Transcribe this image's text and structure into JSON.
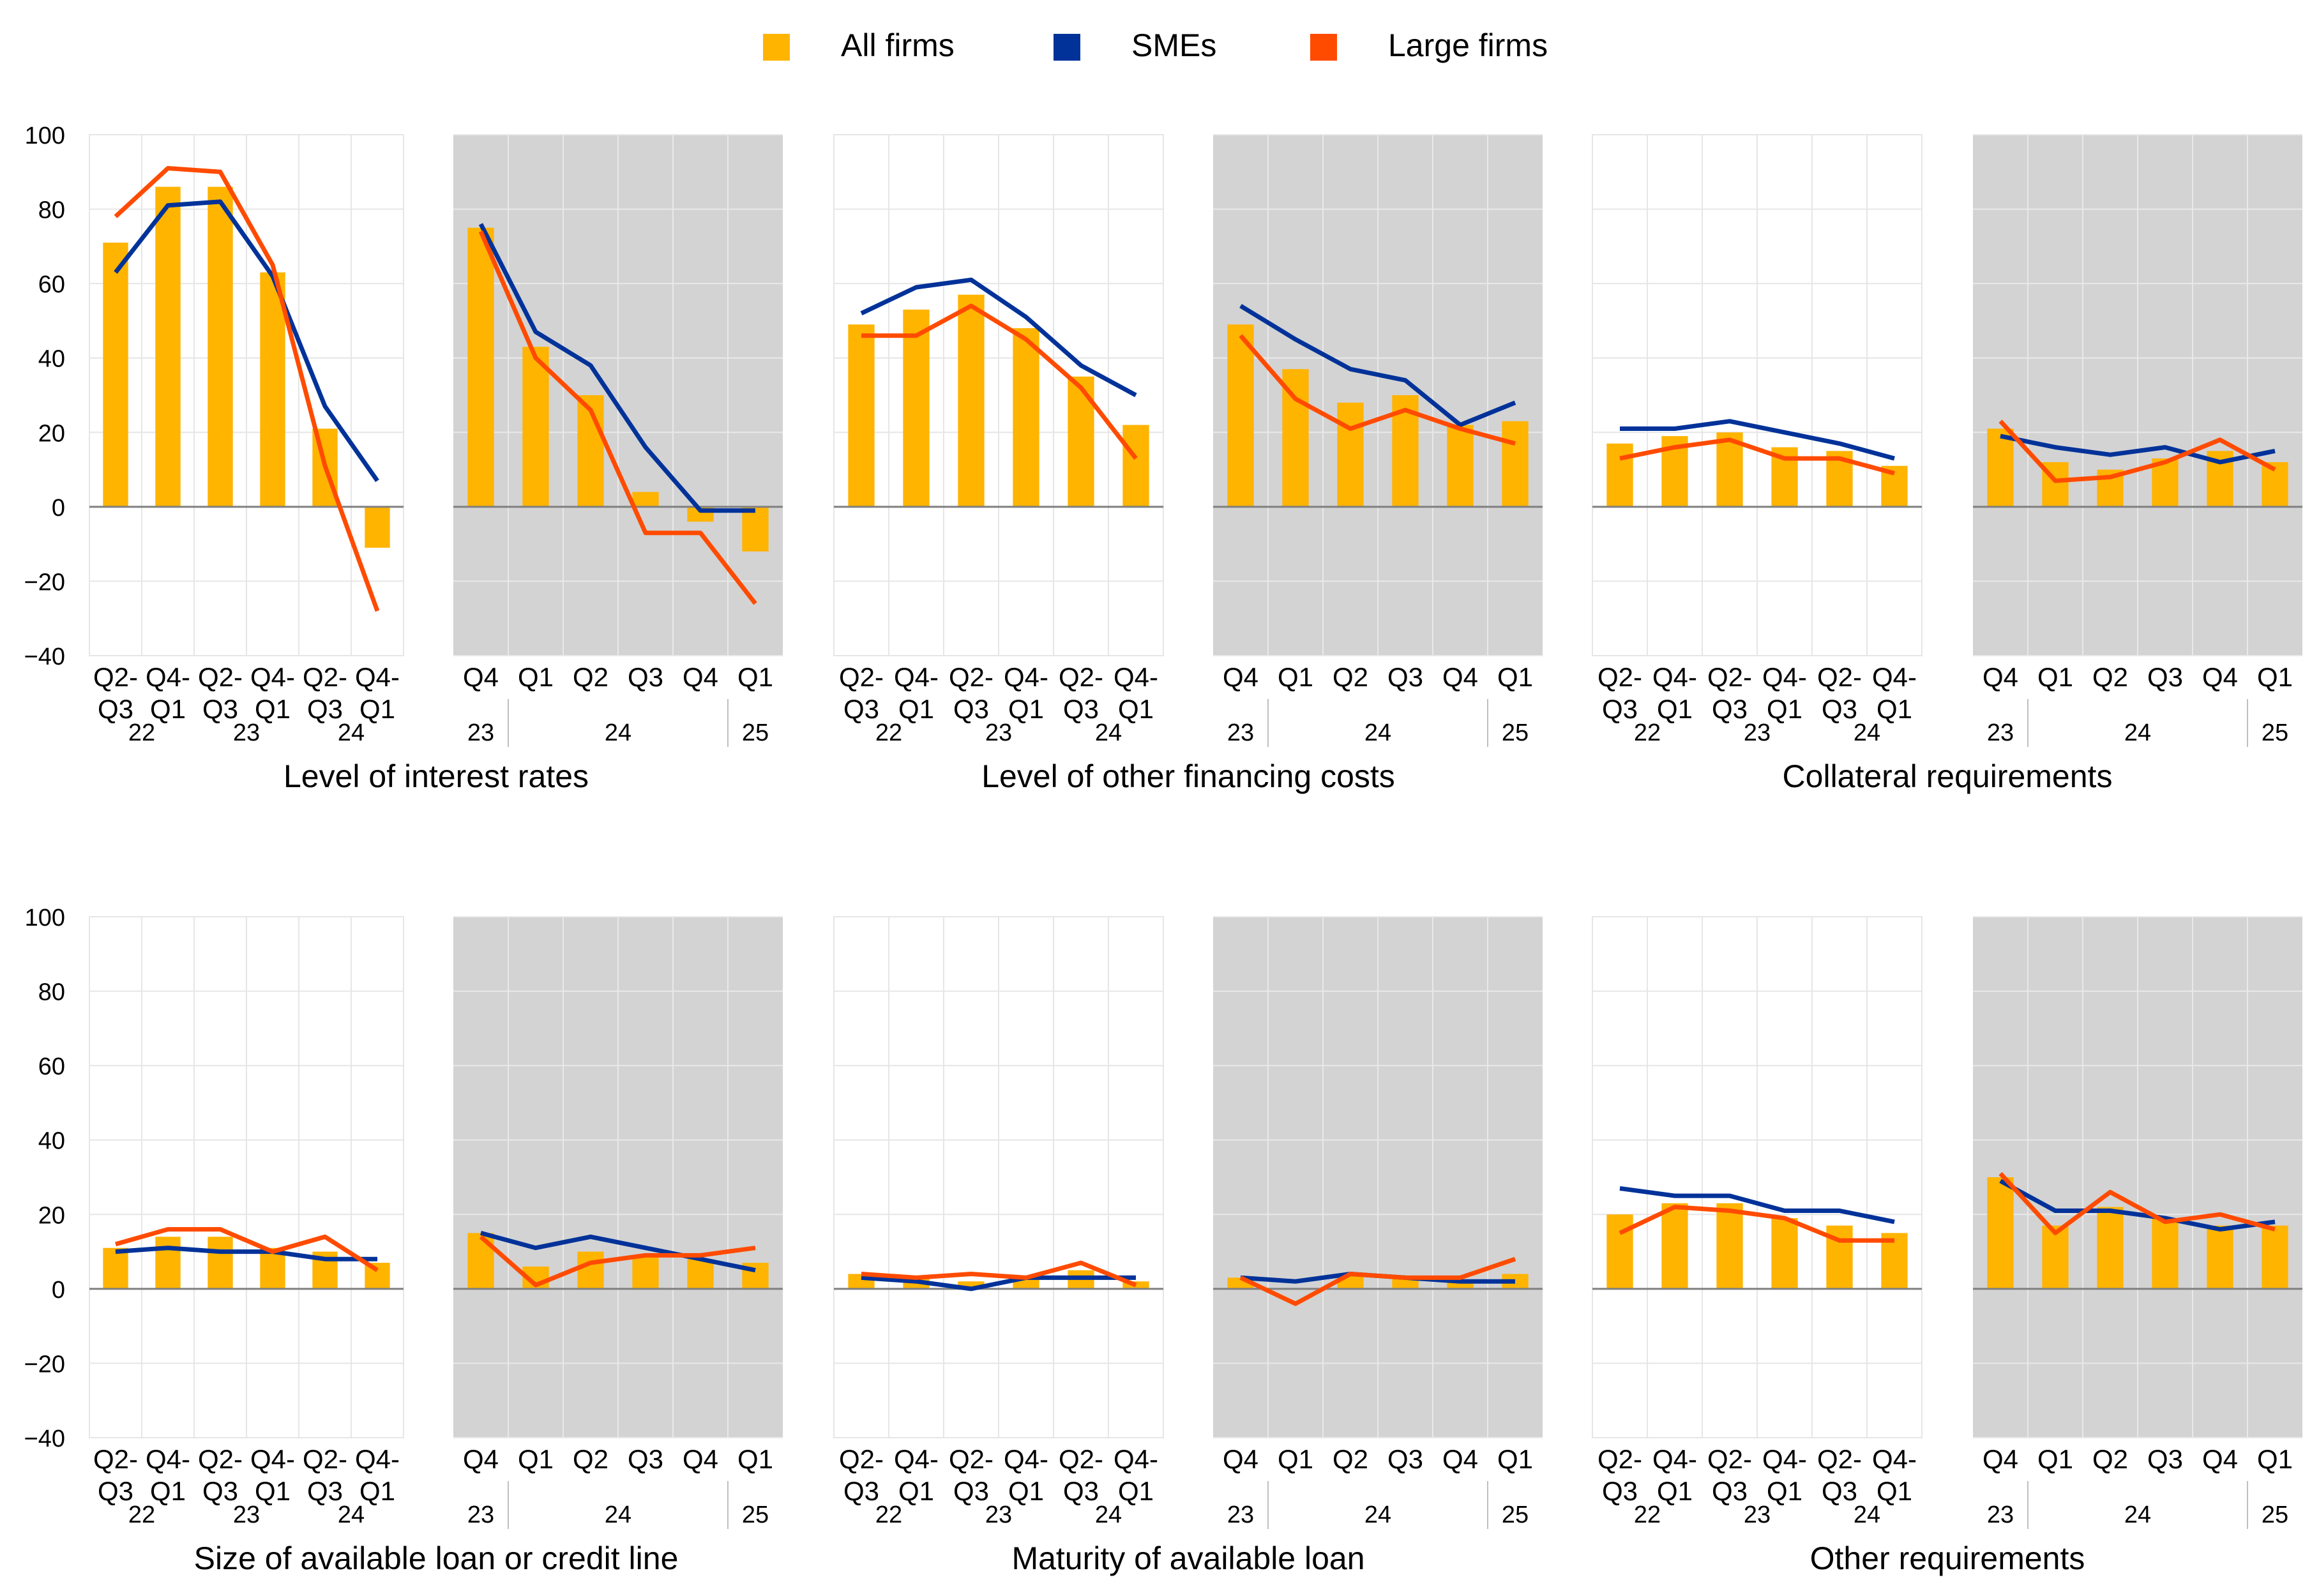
{
  "legend": {
    "items": [
      {
        "label": "All firms",
        "color": "#FFB400",
        "marker": "square"
      },
      {
        "label": "SMEs",
        "color": "#003299",
        "marker": "square"
      },
      {
        "label": "Large firms",
        "color": "#FF4B00",
        "marker": "square"
      }
    ],
    "placement": "top-center"
  },
  "axes": {
    "ylim": [
      -40,
      100
    ],
    "yticks": [
      "100",
      "80",
      "60",
      "40",
      "20",
      "0",
      "−20",
      "−40"
    ],
    "grid": true,
    "zero_line": true
  },
  "colors": {
    "all_firms": "#FFB400",
    "smes": "#003299",
    "large_firms": "#FF4B00",
    "shaded_background": "#D3D3D3",
    "grid": "#E6E6E6",
    "axis": "#7F7F7F"
  },
  "half_year_axis": {
    "tick_labels": [
      [
        "Q2-",
        "Q3"
      ],
      [
        "Q4-",
        "Q1"
      ],
      [
        "Q2-",
        "Q3"
      ],
      [
        "Q4-",
        "Q1"
      ],
      [
        "Q2-",
        "Q3"
      ],
      [
        "Q4-",
        "Q1"
      ]
    ],
    "year_labels": [
      "22",
      "23",
      "24"
    ]
  },
  "quarter_axis": {
    "tick_labels": [
      "Q4",
      "Q1",
      "Q2",
      "Q3",
      "Q4",
      "Q1"
    ],
    "year_labels": [
      "23",
      "24",
      "25"
    ]
  },
  "chart_data": [
    {
      "type": "bar+line",
      "title": "Level of interest rates",
      "periods": {
        "half_year": [
          "Q2-Q3 2022",
          "Q4 2022-Q1 2023",
          "Q2-Q3 2023",
          "Q4 2023-Q1 2024",
          "Q2-Q3 2024",
          "Q4 2024-Q1 2025"
        ],
        "quarterly": [
          "Q4 2023",
          "Q1 2024",
          "Q2 2024",
          "Q3 2024",
          "Q4 2024",
          "Q1 2025"
        ]
      },
      "series": [
        {
          "name": "All firms",
          "kind": "bar",
          "half_year": [
            71,
            86,
            86,
            63,
            21,
            -11
          ],
          "quarterly": [
            75,
            43,
            30,
            4,
            -4,
            -12
          ]
        },
        {
          "name": "SMEs",
          "kind": "line",
          "half_year": [
            63,
            81,
            82,
            62,
            27,
            7
          ],
          "quarterly": [
            76,
            47,
            38,
            16,
            -1,
            -1
          ]
        },
        {
          "name": "Large firms",
          "kind": "line",
          "half_year": [
            78,
            91,
            90,
            65,
            11,
            -28
          ],
          "quarterly": [
            74,
            40,
            26,
            -7,
            -7,
            -26
          ]
        }
      ],
      "ylim": [
        -40,
        100
      ]
    },
    {
      "type": "bar+line",
      "title": "Level of other financing costs",
      "periods": {
        "half_year": [
          "Q2-Q3 2022",
          "Q4 2022-Q1 2023",
          "Q2-Q3 2023",
          "Q4 2023-Q1 2024",
          "Q2-Q3 2024",
          "Q4 2024-Q1 2025"
        ],
        "quarterly": [
          "Q4 2023",
          "Q1 2024",
          "Q2 2024",
          "Q3 2024",
          "Q4 2024",
          "Q1 2025"
        ]
      },
      "series": [
        {
          "name": "All firms",
          "kind": "bar",
          "half_year": [
            49,
            53,
            57,
            48,
            35,
            22
          ],
          "quarterly": [
            49,
            37,
            28,
            30,
            22,
            23
          ]
        },
        {
          "name": "SMEs",
          "kind": "line",
          "half_year": [
            52,
            59,
            61,
            51,
            38,
            30
          ],
          "quarterly": [
            54,
            45,
            37,
            34,
            22,
            28
          ]
        },
        {
          "name": "Large firms",
          "kind": "line",
          "half_year": [
            46,
            46,
            54,
            45,
            32,
            13
          ],
          "quarterly": [
            46,
            29,
            21,
            26,
            21,
            17
          ]
        }
      ],
      "ylim": [
        -40,
        100
      ]
    },
    {
      "type": "bar+line",
      "title": "Collateral requirements",
      "periods": {
        "half_year": [
          "Q2-Q3 2022",
          "Q4 2022-Q1 2023",
          "Q2-Q3 2023",
          "Q4 2023-Q1 2024",
          "Q2-Q3 2024",
          "Q4 2024-Q1 2025"
        ],
        "quarterly": [
          "Q4 2023",
          "Q1 2024",
          "Q2 2024",
          "Q3 2024",
          "Q4 2024",
          "Q1 2025"
        ]
      },
      "series": [
        {
          "name": "All firms",
          "kind": "bar",
          "half_year": [
            17,
            19,
            20,
            16,
            15,
            11
          ],
          "quarterly": [
            21,
            12,
            10,
            13,
            15,
            12
          ]
        },
        {
          "name": "SMEs",
          "kind": "line",
          "half_year": [
            21,
            21,
            23,
            20,
            17,
            13
          ],
          "quarterly": [
            19,
            16,
            14,
            16,
            12,
            15
          ]
        },
        {
          "name": "Large firms",
          "kind": "line",
          "half_year": [
            13,
            16,
            18,
            13,
            13,
            9
          ],
          "quarterly": [
            23,
            7,
            8,
            12,
            18,
            10
          ]
        }
      ],
      "ylim": [
        -40,
        100
      ]
    },
    {
      "type": "bar+line",
      "title": "Size of available loan or credit line",
      "periods": {
        "half_year": [
          "Q2-Q3 2022",
          "Q4 2022-Q1 2023",
          "Q2-Q3 2023",
          "Q4 2023-Q1 2024",
          "Q2-Q3 2024",
          "Q4 2024-Q1 2025"
        ],
        "quarterly": [
          "Q4 2023",
          "Q1 2024",
          "Q2 2024",
          "Q3 2024",
          "Q4 2024",
          "Q1 2025"
        ]
      },
      "series": [
        {
          "name": "All firms",
          "kind": "bar",
          "half_year": [
            11,
            14,
            14,
            11,
            10,
            7
          ],
          "quarterly": [
            15,
            6,
            10,
            9,
            8,
            7
          ]
        },
        {
          "name": "SMEs",
          "kind": "line",
          "half_year": [
            10,
            11,
            10,
            10,
            8,
            8
          ],
          "quarterly": [
            15,
            11,
            14,
            11,
            8,
            5
          ]
        },
        {
          "name": "Large firms",
          "kind": "line",
          "half_year": [
            12,
            16,
            16,
            10,
            14,
            5
          ],
          "quarterly": [
            14,
            1,
            7,
            9,
            9,
            11
          ]
        }
      ],
      "ylim": [
        -40,
        100
      ]
    },
    {
      "type": "bar+line",
      "title": "Maturity of available loan",
      "periods": {
        "half_year": [
          "Q2-Q3 2022",
          "Q4 2022-Q1 2023",
          "Q2-Q3 2023",
          "Q4 2023-Q1 2024",
          "Q2-Q3 2024",
          "Q4 2024-Q1 2025"
        ],
        "quarterly": [
          "Q4 2023",
          "Q1 2024",
          "Q2 2024",
          "Q3 2024",
          "Q4 2024",
          "Q1 2025"
        ]
      },
      "series": [
        {
          "name": "All firms",
          "kind": "bar",
          "half_year": [
            4,
            3,
            2,
            3,
            5,
            2
          ],
          "quarterly": [
            3,
            0,
            4,
            3,
            2,
            4
          ]
        },
        {
          "name": "SMEs",
          "kind": "line",
          "half_year": [
            3,
            2,
            0,
            3,
            3,
            3
          ],
          "quarterly": [
            3,
            2,
            4,
            3,
            2,
            2
          ]
        },
        {
          "name": "Large firms",
          "kind": "line",
          "half_year": [
            4,
            3,
            4,
            3,
            7,
            1
          ],
          "quarterly": [
            3,
            -4,
            4,
            3,
            3,
            8
          ]
        }
      ],
      "ylim": [
        -40,
        100
      ]
    },
    {
      "type": "bar+line",
      "title": "Other requirements",
      "periods": {
        "half_year": [
          "Q2-Q3 2022",
          "Q4 2022-Q1 2023",
          "Q2-Q3 2023",
          "Q4 2023-Q1 2024",
          "Q2-Q3 2024",
          "Q4 2024-Q1 2025"
        ],
        "quarterly": [
          "Q4 2023",
          "Q1 2024",
          "Q2 2024",
          "Q3 2024",
          "Q4 2024",
          "Q1 2025"
        ]
      },
      "series": [
        {
          "name": "All firms",
          "kind": "bar",
          "half_year": [
            20,
            23,
            23,
            19,
            17,
            15
          ],
          "quarterly": [
            30,
            17,
            22,
            19,
            17,
            17
          ]
        },
        {
          "name": "SMEs",
          "kind": "line",
          "half_year": [
            27,
            25,
            25,
            21,
            21,
            18
          ],
          "quarterly": [
            29,
            21,
            21,
            19,
            16,
            18
          ]
        },
        {
          "name": "Large firms",
          "kind": "line",
          "half_year": [
            15,
            22,
            21,
            19,
            13,
            13
          ],
          "quarterly": [
            31,
            15,
            26,
            18,
            20,
            16
          ]
        }
      ],
      "ylim": [
        -40,
        100
      ]
    }
  ]
}
